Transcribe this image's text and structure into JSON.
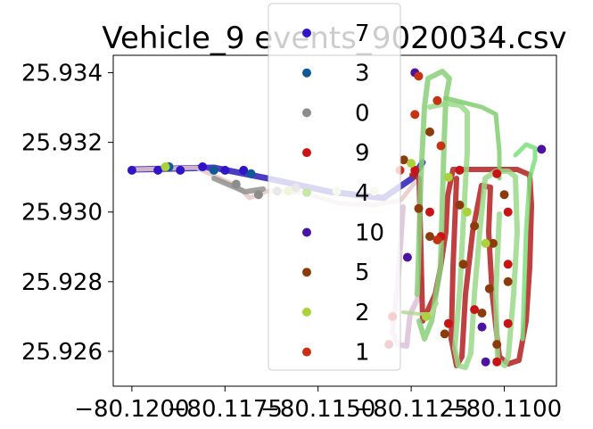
{
  "chart_data": {
    "type": "scatter",
    "title": "Vehicle_9 events_9020034.csv",
    "xlabel": "",
    "ylabel": "",
    "xlim": [
      -80.1205,
      -80.1086
    ],
    "ylim": [
      25.925,
      25.9345
    ],
    "x_ticks": [
      -80.12,
      -80.1175,
      -80.115,
      -80.1125,
      -80.11
    ],
    "x_tick_labels": [
      "−80.1200",
      "−80.1175",
      "−80.1150",
      "−80.1125",
      "−80.1100"
    ],
    "y_ticks": [
      25.926,
      25.928,
      25.93,
      25.932,
      25.934
    ],
    "y_tick_labels": [
      "25.926",
      "25.928",
      "25.930",
      "25.932",
      "25.934"
    ],
    "grid": false,
    "legend_position": "top-center",
    "series": [
      {
        "name": "7",
        "color": "#2f14c8",
        "points": [
          [
            -80.12,
            25.9312
          ],
          [
            -80.1193,
            25.9312
          ],
          [
            -80.1187,
            25.9312
          ],
          [
            -80.1181,
            25.9313
          ],
          [
            -80.1175,
            25.9312
          ],
          [
            -80.117,
            25.9312
          ]
        ]
      },
      {
        "name": "3",
        "color": "#0f5a96",
        "points": [
          [
            -80.119,
            25.9313
          ],
          [
            -80.1178,
            25.9312
          ],
          [
            -80.1168,
            25.9311
          ]
        ]
      },
      {
        "name": "0",
        "color": "#8c8c8c",
        "points": [
          [
            -80.1172,
            25.9308
          ],
          [
            -80.1166,
            25.9305
          ],
          [
            -80.1161,
            25.9306
          ],
          [
            -80.1156,
            25.9307
          ]
        ]
      },
      {
        "name": "9",
        "color": "#c81414",
        "points": [
          [
            -80.1124,
            25.9312
          ],
          [
            -80.1112,
            25.9312
          ],
          [
            -80.1102,
            25.9311
          ],
          [
            -80.1099,
            25.93
          ],
          [
            -80.1099,
            25.9285
          ],
          [
            -80.1099,
            25.9268
          ],
          [
            -80.1102,
            25.9257
          ],
          [
            -80.1117,
            25.9293
          ],
          [
            -80.1115,
            25.9268
          ],
          [
            -80.1108,
            25.9272
          ],
          [
            -80.112,
            25.93
          ],
          [
            -80.113,
            25.927
          ],
          [
            -80.1131,
            25.9262
          ]
        ]
      },
      {
        "name": "4",
        "color": "#c8e6aa",
        "points": [
          [
            -80.1145,
            25.9306
          ],
          [
            -80.1135,
            25.9306
          ]
        ]
      },
      {
        "name": "10",
        "color": "#4b14a0",
        "points": [
          [
            -80.1124,
            25.934
          ],
          [
            -80.1106,
            25.9267
          ],
          [
            -80.1105,
            25.9257
          ],
          [
            -80.109,
            25.9318
          ],
          [
            -80.1126,
            25.9287
          ]
        ]
      },
      {
        "name": "5",
        "color": "#8c3c0a",
        "points": [
          [
            -80.1127,
            25.9315
          ],
          [
            -80.112,
            25.9323
          ],
          [
            -80.112,
            25.9293
          ],
          [
            -80.1112,
            25.9302
          ],
          [
            -80.1111,
            25.9285
          ],
          [
            -80.1108,
            25.9296
          ],
          [
            -80.1106,
            25.9271
          ],
          [
            -80.1104,
            25.9278
          ],
          [
            -80.1103,
            25.9291
          ],
          [
            -80.1102,
            25.9262
          ],
          [
            -80.11,
            25.9305
          ],
          [
            -80.1099,
            25.928
          ],
          [
            -80.1116,
            25.9265
          ],
          [
            -80.1123,
            25.9301
          ]
        ]
      },
      {
        "name": "2",
        "color": "#aad23c",
        "points": [
          [
            -80.1191,
            25.9313
          ],
          [
            -80.1158,
            25.9306
          ],
          [
            -80.1125,
            25.9314
          ],
          [
            -80.1121,
            25.927
          ],
          [
            -80.1115,
            25.931
          ],
          [
            -80.111,
            25.93
          ],
          [
            -80.1105,
            25.9291
          ]
        ]
      },
      {
        "name": "1",
        "color": "#c83214",
        "points": [
          [
            -80.1123,
            25.9339
          ],
          [
            -80.1118,
            25.9332
          ],
          [
            -80.1124,
            25.9328
          ],
          [
            -80.1117,
            25.9319
          ],
          [
            -80.1118,
            25.9292
          ],
          [
            -80.1128,
            25.9312
          ]
        ]
      }
    ]
  }
}
